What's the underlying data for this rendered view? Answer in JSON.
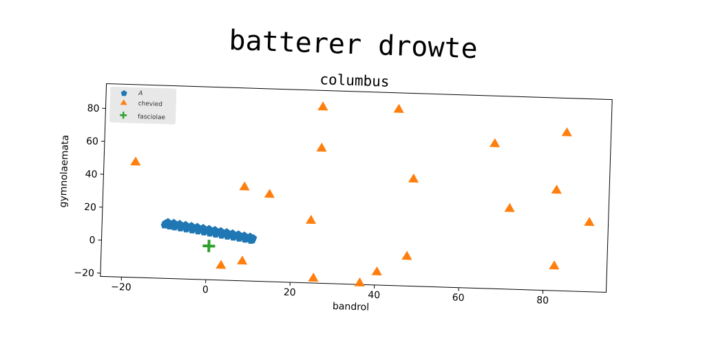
{
  "chart_data": {
    "type": "scatter",
    "title": "batterer drowte",
    "subtitle": "columbus",
    "xlabel": "bandrol",
    "ylabel": "gymnolaemata",
    "xlim": [
      -25,
      95
    ],
    "ylim": [
      -22,
      95
    ],
    "xticks": [
      -20,
      0,
      20,
      40,
      60,
      80
    ],
    "yticks": [
      -20,
      0,
      20,
      40,
      60,
      80
    ],
    "xtick_labels": [
      "−20",
      "0",
      "20",
      "40",
      "60",
      "80"
    ],
    "ytick_labels": [
      "−20",
      "0",
      "20",
      "40",
      "60",
      "80"
    ],
    "grid": false,
    "legend_position": "top-left",
    "series": [
      {
        "name": "A",
        "marker": "pentagon",
        "color": "#1f77b4",
        "points": [
          [
            -10.0,
            11.5
          ],
          [
            -9.2,
            11.4
          ],
          [
            -8.4,
            11.1
          ],
          [
            -7.6,
            10.8
          ],
          [
            -6.8,
            10.5
          ],
          [
            -6.0,
            10.2
          ],
          [
            -5.2,
            9.8
          ],
          [
            -4.4,
            9.5
          ],
          [
            -3.6,
            9.2
          ],
          [
            -2.8,
            8.9
          ],
          [
            -2.0,
            8.6
          ],
          [
            -1.2,
            8.2
          ],
          [
            -0.4,
            7.9
          ],
          [
            0.4,
            7.6
          ],
          [
            1.2,
            7.3
          ],
          [
            2.0,
            6.9
          ],
          [
            2.8,
            6.6
          ],
          [
            3.6,
            6.3
          ],
          [
            4.4,
            5.9
          ],
          [
            5.2,
            5.6
          ],
          [
            6.0,
            5.3
          ],
          [
            6.8,
            4.9
          ],
          [
            7.6,
            4.6
          ],
          [
            8.4,
            4.3
          ],
          [
            9.2,
            3.9
          ],
          [
            10.0,
            3.5
          ],
          [
            10.8,
            2.9
          ],
          [
            -10.2,
            10.2
          ],
          [
            -9.0,
            9.6
          ],
          [
            -7.8,
            9.2
          ],
          [
            -6.4,
            8.7
          ],
          [
            -5.0,
            8.2
          ],
          [
            -3.6,
            7.7
          ],
          [
            -2.2,
            7.2
          ],
          [
            -0.8,
            6.7
          ],
          [
            0.6,
            6.1
          ],
          [
            2.0,
            5.6
          ],
          [
            3.4,
            5.1
          ],
          [
            4.8,
            4.6
          ],
          [
            6.2,
            4.1
          ],
          [
            7.6,
            3.6
          ],
          [
            9.0,
            3.1
          ],
          [
            10.4,
            2.5
          ],
          [
            -9.4,
            12.4
          ],
          [
            -8.0,
            12.0
          ],
          [
            -6.6,
            11.5
          ],
          [
            -5.2,
            11.0
          ],
          [
            -3.8,
            10.5
          ],
          [
            -2.4,
            10.0
          ],
          [
            -1.0,
            9.5
          ],
          [
            0.4,
            9.0
          ],
          [
            1.8,
            8.5
          ],
          [
            3.2,
            7.9
          ],
          [
            4.6,
            7.4
          ],
          [
            6.0,
            6.8
          ],
          [
            7.4,
            6.3
          ],
          [
            8.8,
            5.7
          ],
          [
            10.2,
            5.1
          ],
          [
            11.0,
            4.2
          ]
        ]
      },
      {
        "name": "chevied",
        "marker": "triangle",
        "color": "#ff7f0e",
        "points": [
          [
            -17.5,
            48
          ],
          [
            26.5,
            85
          ],
          [
            44.5,
            85
          ],
          [
            26.5,
            60
          ],
          [
            67.5,
            66
          ],
          [
            84.5,
            74
          ],
          [
            48.5,
            43
          ],
          [
            82.5,
            39
          ],
          [
            8.5,
            35
          ],
          [
            14.5,
            31
          ],
          [
            71.5,
            27
          ],
          [
            90.5,
            20
          ],
          [
            24.5,
            16
          ],
          [
            47.5,
            -4
          ],
          [
            82.5,
            -7
          ],
          [
            8.5,
            -10
          ],
          [
            3.5,
            -13
          ],
          [
            40.5,
            -14
          ],
          [
            25.5,
            -19
          ],
          [
            36.5,
            -21
          ]
        ]
      },
      {
        "name": "fasciolae",
        "marker": "plus",
        "color": "#2ca02c",
        "points": [
          [
            0.5,
            -1.5
          ]
        ]
      }
    ]
  }
}
